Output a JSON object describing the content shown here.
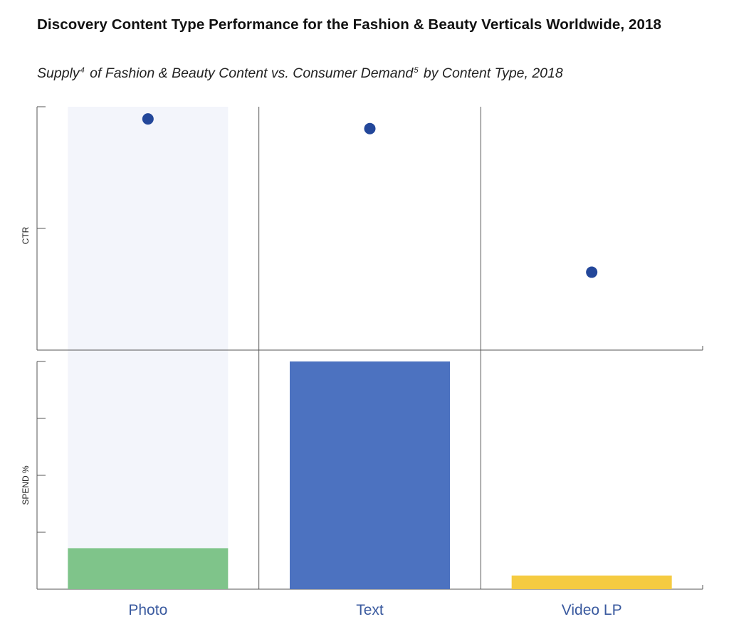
{
  "title": "Discovery Content Type Performance for the Fashion & Beauty Verticals Worldwide, 2018",
  "subtitle": {
    "part1": "Supply",
    "sup1": "4",
    "part2": " of Fashion & Beauty Content vs. Consumer Demand",
    "sup2": "5",
    "part3": " by Content Type, 2018"
  },
  "colors": {
    "dot": "#23479a",
    "category_text": "#3a5a9f",
    "highlight": "#f3f5fb",
    "grid": "#555555"
  },
  "chart_data": [
    {
      "type": "scatter",
      "categories": [
        "Photo",
        "Text",
        "Video LP"
      ],
      "values": [
        0.95,
        0.91,
        0.32
      ],
      "ylabel": "CTR",
      "ylim": [
        0,
        1
      ],
      "grid": true
    },
    {
      "type": "bar",
      "categories": [
        "Photo",
        "Text",
        "Video LP"
      ],
      "values": [
        0.18,
        1.0,
        0.06
      ],
      "ylabel": "SPEND %",
      "ylim": [
        0,
        1
      ],
      "bar_colors": [
        "#7fc48a",
        "#4c72c0",
        "#f5cb41"
      ],
      "grid": true
    }
  ],
  "highlighted_category": "Photo"
}
